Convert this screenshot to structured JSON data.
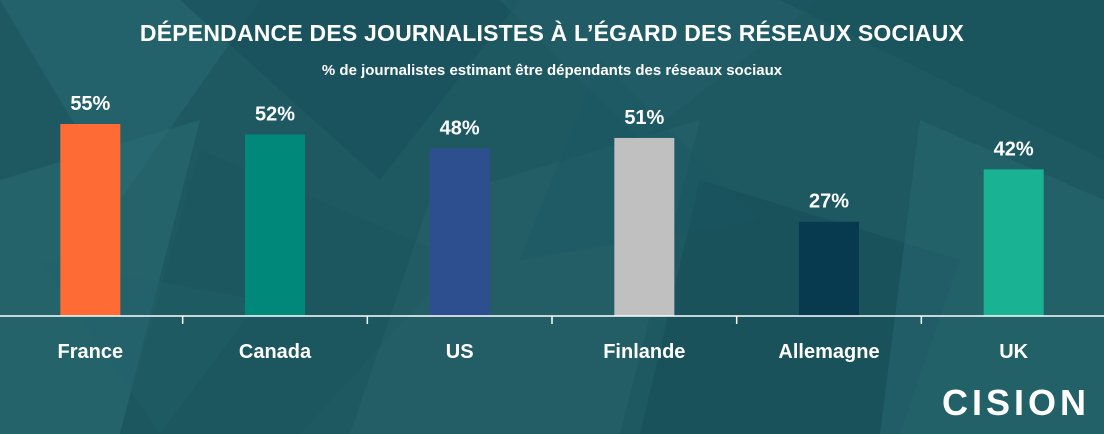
{
  "header": {
    "title": "DÉPENDANCE DES JOURNALISTES À L’ÉGARD DES RÉSEAUX SOCIAUX",
    "subtitle": "% de journalistes estimant être dépendants des réseaux sociaux"
  },
  "logo": {
    "text": "CISION",
    "accent_color": "#ff6b35"
  },
  "chart_data": {
    "type": "bar",
    "title": "DÉPENDANCE DES JOURNALISTES À L’ÉGARD DES RÉSEAUX SOCIAUX",
    "subtitle": "% de journalistes estimant être dépendants des réseaux sociaux",
    "categories": [
      "France",
      "Canada",
      "US",
      "Finlande",
      "Allemagne",
      "UK"
    ],
    "values": [
      55,
      52,
      48,
      51,
      27,
      42
    ],
    "labels": [
      "55%",
      "52%",
      "48%",
      "51%",
      "27%",
      "42%"
    ],
    "colors": [
      "#ff6b35",
      "#00897b",
      "#2e4f8f",
      "#c0c0c0",
      "#083a4f",
      "#19b394"
    ],
    "ylim": [
      0,
      60
    ],
    "grid": false,
    "legend": "none"
  }
}
